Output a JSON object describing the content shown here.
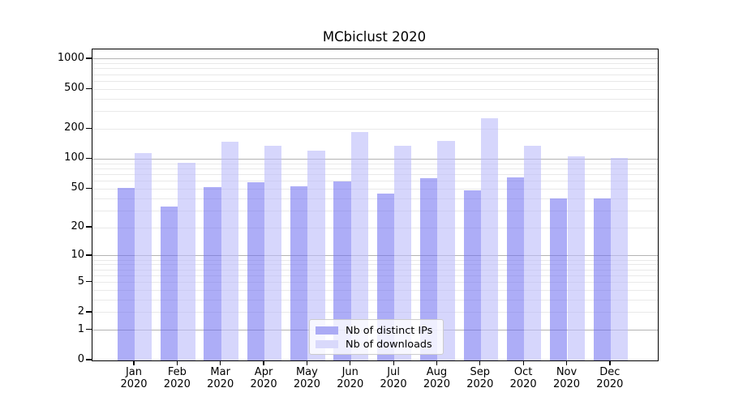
{
  "chart_data": {
    "type": "bar",
    "title": "MCbiclust 2020",
    "categories": [
      "Jan",
      "Feb",
      "Mar",
      "Apr",
      "May",
      "Jun",
      "Jul",
      "Aug",
      "Sep",
      "Oct",
      "Nov",
      "Dec"
    ],
    "category_year": "2020",
    "series": [
      {
        "name": "Nb of distinct IPs",
        "color": "#6a6af0",
        "fill_opacity": 0.55,
        "legend_swatch_color": "#ababf5",
        "values": [
          51,
          33,
          52,
          58,
          53,
          60,
          45,
          64,
          48,
          65,
          40,
          40
        ]
      },
      {
        "name": "Nb of downloads",
        "color": "#bbbbfa",
        "fill_opacity": 0.6,
        "legend_swatch_color": "#d9d9fb",
        "values": [
          115,
          92,
          150,
          135,
          122,
          186,
          135,
          153,
          257,
          136,
          106,
          103
        ]
      }
    ],
    "xlabel": "",
    "ylabel": "",
    "yscale": "log1p",
    "yticks": [
      0,
      1,
      2,
      5,
      10,
      20,
      50,
      100,
      200,
      500,
      1000
    ],
    "ylim": [
      0,
      1270
    ],
    "grid": "horizontal: major lines at 1,10,100,1000; minor lines at 2-9, 20-90, 200-900",
    "legend_position": "lower center"
  },
  "colors": {
    "major_grid": "#b3b3b3",
    "minor_grid": "#e9e9e9",
    "spine": "#000000",
    "legend_border": "#cccccc",
    "text": "#000000"
  }
}
